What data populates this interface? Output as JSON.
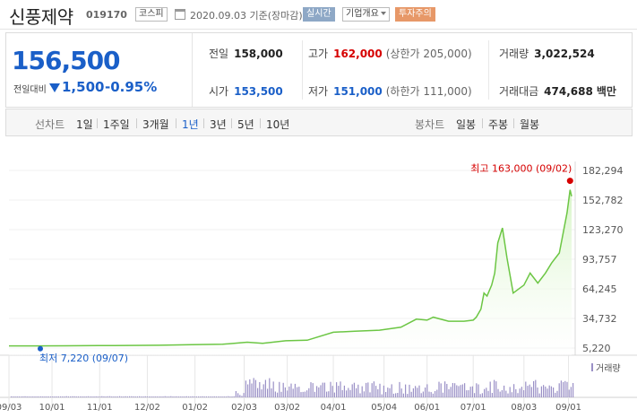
{
  "header": {
    "name": "신풍제약",
    "code": "019170",
    "market": "코스피",
    "date": "2020.09.03  기준(장마감)",
    "realtime": "실시간",
    "overview": "기업개요",
    "caution": "투자주의"
  },
  "price": {
    "current": "156,500",
    "change_label": "전일대비",
    "change": "1,500",
    "rate": "-0.95%",
    "prev_close_label": "전일",
    "prev_close": "158,000",
    "high_label": "고가",
    "high": "162,000",
    "upper_limit": "(상한가 205,000)",
    "volume_label": "거래량",
    "volume": "3,022,524",
    "open_label": "시가",
    "open": "153,500",
    "low_label": "저가",
    "low": "151,000",
    "lower_limit": "(하한가 111,000)",
    "amount_label": "거래대금",
    "amount": "474,688",
    "amount_unit": "백만",
    "colors": {
      "up": "#d60000",
      "down": "#1a5fc8"
    }
  },
  "tabs": {
    "line_chart_label": "선차트",
    "line_periods": [
      "1일",
      "1주일",
      "3개월",
      "1년",
      "3년",
      "5년",
      "10년"
    ],
    "active": "1년",
    "candle_chart_label": "봉차트",
    "candle_periods": [
      "일봉",
      "주봉",
      "월봉"
    ]
  },
  "chart_data": {
    "type": "area",
    "y_ticks": [
      "182,294",
      "152,782",
      "123,270",
      "93,757",
      "64,245",
      "34,732",
      "5,220"
    ],
    "ylim": [
      5220,
      182294
    ],
    "x_ticks": [
      "09/03",
      "10/01",
      "11/01",
      "12/02",
      "01/02",
      "02/03",
      "03/02",
      "04/01",
      "05/04",
      "06/01",
      "07/01",
      "08/03",
      "09/01"
    ],
    "max_annotation": "최고 163,000 (09/02)",
    "min_annotation": "최저 7,220 (09/07)",
    "volume_legend": "거래량",
    "series": [
      {
        "x": [
          "09/03",
          "09/20",
          "10/10",
          "10/31",
          "11/20",
          "12/10",
          "12/31",
          "01/20",
          "02/05",
          "02/15",
          "03/01",
          "03/15",
          "04/01",
          "04/15",
          "05/01",
          "05/15",
          "05/25",
          "06/01",
          "06/05",
          "06/15",
          "06/25",
          "07/01",
          "07/03",
          "07/06",
          "07/08",
          "07/10",
          "07/13",
          "07/15",
          "07/17",
          "07/20",
          "07/23",
          "07/27",
          "08/03",
          "08/07",
          "08/12",
          "08/17",
          "08/21",
          "08/26",
          "08/31",
          "09/02",
          "09/03"
        ],
        "values": [
          7400,
          7400,
          7500,
          7600,
          7800,
          8000,
          8500,
          9000,
          11000,
          10000,
          12500,
          13000,
          21000,
          22000,
          23000,
          26000,
          34000,
          33000,
          36000,
          32000,
          32000,
          33000,
          36000,
          44000,
          60000,
          57000,
          68000,
          80000,
          110000,
          125000,
          95000,
          60000,
          68000,
          80000,
          70000,
          80000,
          90000,
          100000,
          140000,
          163000,
          156500
        ]
      }
    ],
    "colors": {
      "line": "#6cc644",
      "fill_top": "#d8f5c8",
      "volume": "#9a90c6",
      "max_dot": "#d60000",
      "min_dot": "#1a5fc8"
    }
  }
}
